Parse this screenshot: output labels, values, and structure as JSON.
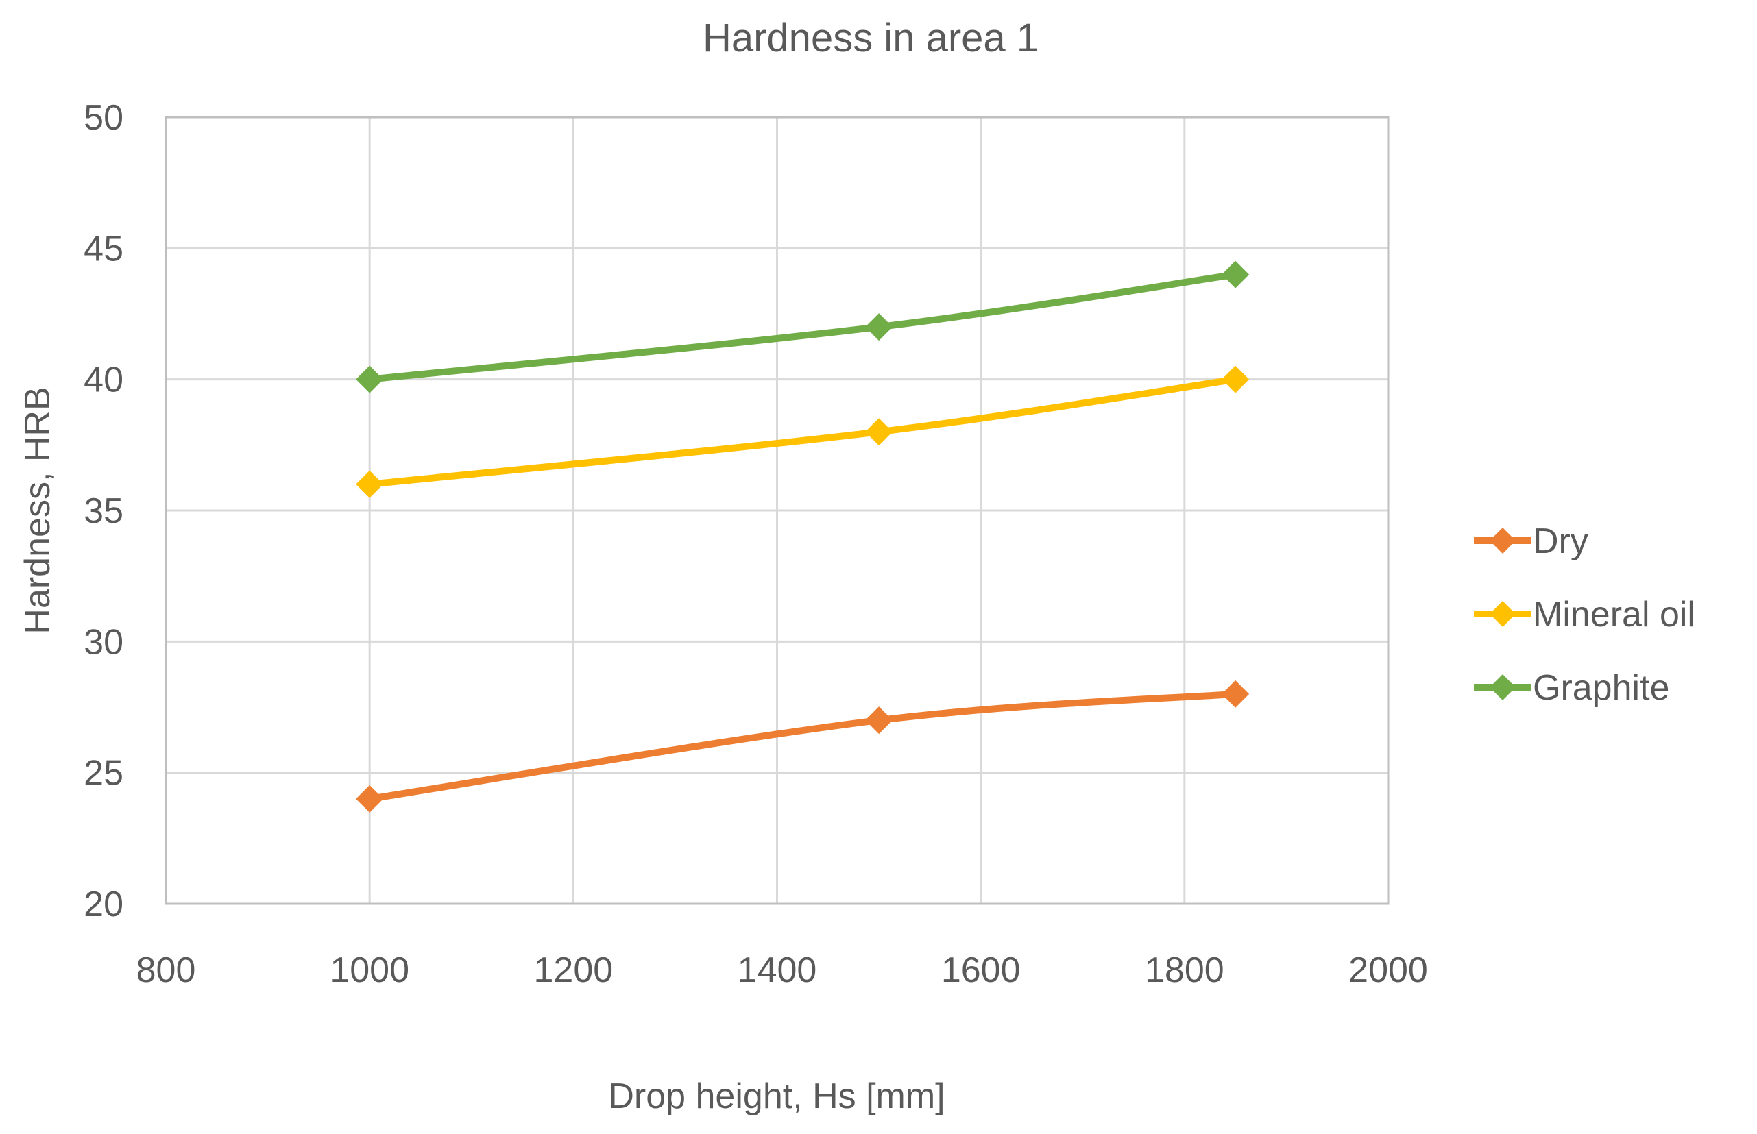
{
  "chart_data": {
    "type": "line",
    "title": "Hardness in area 1",
    "xlabel": "Drop height, Hs [mm]",
    "ylabel": "Hardness, HRB",
    "xlim": [
      800,
      2000
    ],
    "ylim": [
      20,
      50
    ],
    "xticks": [
      800,
      1000,
      1200,
      1400,
      1600,
      1800,
      2000
    ],
    "yticks": [
      20,
      25,
      30,
      35,
      40,
      45,
      50
    ],
    "grid": true,
    "legend_position": "right",
    "marker": "diamond",
    "smoothed": true,
    "series": [
      {
        "name": "Dry",
        "color": "#ED7D31",
        "x": [
          1000,
          1500,
          1850
        ],
        "y": [
          24,
          27,
          28
        ]
      },
      {
        "name": "Mineral oil",
        "color": "#FFC000",
        "x": [
          1000,
          1500,
          1850
        ],
        "y": [
          36,
          38,
          40
        ]
      },
      {
        "name": "Graphite",
        "color": "#70AD47",
        "x": [
          1000,
          1500,
          1850
        ],
        "y": [
          40,
          42,
          44
        ]
      }
    ]
  }
}
